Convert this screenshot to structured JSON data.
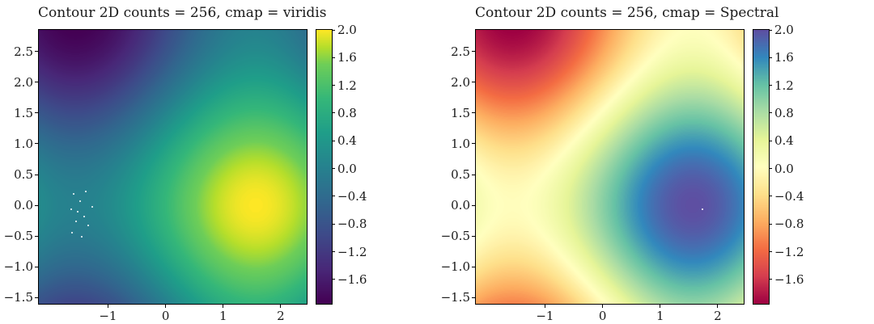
{
  "figure": {
    "background": "#ffffff",
    "text_color": "#1a1a1a"
  },
  "chart_data": [
    {
      "type": "heatmap",
      "title": "Contour 2D counts = 256, cmap = viridis",
      "cmap": "viridis",
      "levels": 256,
      "z_formula": "z = sin(x) + cos(y)",
      "x_range": [
        -2.2,
        2.45
      ],
      "y_range": [
        -1.6,
        2.85
      ],
      "z_range": [
        -1.95,
        2.0
      ],
      "xticks": [
        {
          "v": -1,
          "label": "−1"
        },
        {
          "v": 0,
          "label": "0"
        },
        {
          "v": 1,
          "label": "1"
        },
        {
          "v": 2,
          "label": "2"
        }
      ],
      "yticks": [
        {
          "v": 2.5,
          "label": "2.5"
        },
        {
          "v": 2.0,
          "label": "2.0"
        },
        {
          "v": 1.5,
          "label": "1.5"
        },
        {
          "v": 1.0,
          "label": "1.0"
        },
        {
          "v": 0.5,
          "label": "0.5"
        },
        {
          "v": 0.0,
          "label": "0.0"
        },
        {
          "v": -0.5,
          "label": "−0.5"
        },
        {
          "v": -1.0,
          "label": "−1.0"
        },
        {
          "v": -1.5,
          "label": "−1.5"
        }
      ],
      "colorbar_ticks": [
        {
          "v": 2.0,
          "label": "2.0"
        },
        {
          "v": 1.6,
          "label": "1.6"
        },
        {
          "v": 1.2,
          "label": "1.2"
        },
        {
          "v": 0.8,
          "label": "0.8"
        },
        {
          "v": 0.4,
          "label": "0.4"
        },
        {
          "v": 0.0,
          "label": "0.0"
        },
        {
          "v": -0.4,
          "label": "−0.4"
        },
        {
          "v": -0.8,
          "label": "−0.8"
        },
        {
          "v": -1.2,
          "label": "−1.2"
        },
        {
          "v": -1.6,
          "label": "−1.6"
        }
      ],
      "cmap_stops": [
        {
          "pos": 0.0,
          "color": "#440154"
        },
        {
          "pos": 0.125,
          "color": "#482878"
        },
        {
          "pos": 0.25,
          "color": "#3e4a89"
        },
        {
          "pos": 0.375,
          "color": "#31688e"
        },
        {
          "pos": 0.5,
          "color": "#26828e"
        },
        {
          "pos": 0.625,
          "color": "#1f9e89"
        },
        {
          "pos": 0.75,
          "color": "#35b779"
        },
        {
          "pos": 0.875,
          "color": "#6ece58"
        },
        {
          "pos": 0.9375,
          "color": "#b5de2b"
        },
        {
          "pos": 1.0,
          "color": "#fde725"
        }
      ],
      "z_sample_grid": {
        "x": [
          -2.2,
          -1.0,
          0.0,
          1.0,
          2.45
        ],
        "y": [
          -1.6,
          -0.5,
          0.0,
          1.0,
          2.85
        ],
        "z": [
          [
            -0.84,
            -0.87,
            -0.03,
            0.81,
            0.61
          ],
          [
            0.07,
            0.04,
            0.88,
            1.72,
            1.52
          ],
          [
            0.19,
            0.16,
            1.0,
            1.84,
            1.64
          ],
          [
            -0.27,
            -0.3,
            0.54,
            1.38,
            1.18
          ],
          [
            -1.77,
            -1.8,
            -0.96,
            -0.12,
            -0.32
          ]
        ]
      },
      "specks": [
        [
          0.13,
          0.6
        ],
        [
          0.155,
          0.625
        ],
        [
          0.12,
          0.655
        ],
        [
          0.17,
          0.68
        ],
        [
          0.14,
          0.7
        ],
        [
          0.185,
          0.715
        ],
        [
          0.125,
          0.74
        ],
        [
          0.16,
          0.755
        ],
        [
          0.2,
          0.645
        ],
        [
          0.175,
          0.59
        ],
        [
          0.145,
          0.665
        ]
      ]
    },
    {
      "type": "heatmap",
      "title": "Contour 2D counts = 256, cmap = Spectral",
      "cmap": "Spectral",
      "levels": 256,
      "z_formula": "z = sin(x) + cos(y)",
      "x_range": [
        -2.2,
        2.45
      ],
      "y_range": [
        -1.6,
        2.85
      ],
      "z_range": [
        -1.95,
        2.0
      ],
      "xticks": [
        {
          "v": -1,
          "label": "−1"
        },
        {
          "v": 0,
          "label": "0"
        },
        {
          "v": 1,
          "label": "1"
        },
        {
          "v": 2,
          "label": "2"
        }
      ],
      "yticks": [
        {
          "v": 2.5,
          "label": "2.5"
        },
        {
          "v": 2.0,
          "label": "2.0"
        },
        {
          "v": 1.5,
          "label": "1.5"
        },
        {
          "v": 1.0,
          "label": "1.0"
        },
        {
          "v": 0.5,
          "label": "0.5"
        },
        {
          "v": 0.0,
          "label": "0.0"
        },
        {
          "v": -0.5,
          "label": "−0.5"
        },
        {
          "v": -1.0,
          "label": "−1.0"
        },
        {
          "v": -1.5,
          "label": "−1.5"
        }
      ],
      "colorbar_ticks": [
        {
          "v": 2.0,
          "label": "2.0"
        },
        {
          "v": 1.6,
          "label": "1.6"
        },
        {
          "v": 1.2,
          "label": "1.2"
        },
        {
          "v": 0.8,
          "label": "0.8"
        },
        {
          "v": 0.4,
          "label": "0.4"
        },
        {
          "v": 0.0,
          "label": "0.0"
        },
        {
          "v": -0.4,
          "label": "−0.4"
        },
        {
          "v": -0.8,
          "label": "−0.8"
        },
        {
          "v": -1.2,
          "label": "−1.2"
        },
        {
          "v": -1.6,
          "label": "−1.6"
        }
      ],
      "cmap_stops": [
        {
          "pos": 0.0,
          "color": "#9e0142"
        },
        {
          "pos": 0.1,
          "color": "#d53e4f"
        },
        {
          "pos": 0.2,
          "color": "#f46d43"
        },
        {
          "pos": 0.3,
          "color": "#fdae61"
        },
        {
          "pos": 0.4,
          "color": "#fee08b"
        },
        {
          "pos": 0.5,
          "color": "#ffffbf"
        },
        {
          "pos": 0.6,
          "color": "#e6f598"
        },
        {
          "pos": 0.7,
          "color": "#abdda4"
        },
        {
          "pos": 0.8,
          "color": "#66c2a5"
        },
        {
          "pos": 0.9,
          "color": "#3288bd"
        },
        {
          "pos": 1.0,
          "color": "#5e4fa2"
        }
      ],
      "z_sample_grid": {
        "x": [
          -2.2,
          -1.0,
          0.0,
          1.0,
          2.45
        ],
        "y": [
          -1.6,
          -0.5,
          0.0,
          1.0,
          2.85
        ],
        "z": [
          [
            -0.84,
            -0.87,
            -0.03,
            0.81,
            0.61
          ],
          [
            0.07,
            0.04,
            0.88,
            1.72,
            1.52
          ],
          [
            0.19,
            0.16,
            1.0,
            1.84,
            1.64
          ],
          [
            -0.27,
            -0.3,
            0.54,
            1.38,
            1.18
          ],
          [
            -1.77,
            -1.8,
            -0.96,
            -0.12,
            -0.32
          ]
        ]
      },
      "specks": [
        [
          0.845,
          0.655
        ]
      ]
    }
  ]
}
